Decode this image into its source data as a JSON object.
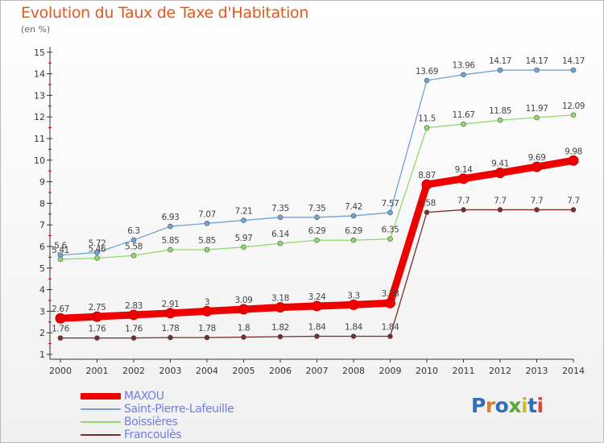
{
  "header": {
    "title": "Evolution du Taux de Taxe d'Habitation",
    "subtitle": "(en %)"
  },
  "logo": {
    "text": "Proxiti",
    "colors": [
      "#2f6fb8",
      "#e27a27",
      "#2f6fb8",
      "#5aa83a",
      "#d6b62b",
      "#2f6fb8",
      "#d44a3a"
    ]
  },
  "chart_data": {
    "type": "line",
    "x": [
      "2000",
      "2001",
      "2002",
      "2003",
      "2004",
      "2005",
      "2006",
      "2007",
      "2008",
      "2009",
      "2010",
      "2011",
      "2012",
      "2013",
      "2014"
    ],
    "yticks": [
      "1",
      "2",
      "3",
      "4",
      "5",
      "6",
      "7",
      "8",
      "9",
      "10",
      "11",
      "12",
      "13",
      "14",
      "15"
    ],
    "ylim": [
      0.5,
      15
    ],
    "grid": false,
    "series": [
      {
        "name": "MAXOU",
        "color": "#ee0000",
        "values": [
          2.67,
          2.75,
          2.83,
          2.91,
          3,
          3.09,
          3.18,
          3.24,
          3.3,
          3.38,
          8.87,
          9.14,
          9.41,
          9.69,
          9.98
        ],
        "labels": [
          "2.67",
          "2.75",
          "2.83",
          "2.91",
          "3",
          "3.09",
          "3.18",
          "3.24",
          "3.3",
          "3.38",
          "8.87",
          "9.14",
          "9.41",
          "9.69",
          "9.98"
        ]
      },
      {
        "name": "Saint-Pierre-Lafeuille",
        "color": "#6fa3d8",
        "values": [
          5.6,
          5.72,
          6.3,
          6.93,
          7.07,
          7.21,
          7.35,
          7.35,
          7.42,
          7.57,
          13.69,
          13.96,
          14.17,
          14.17,
          14.17
        ],
        "labels": [
          "5.6",
          "5.72",
          "6.3",
          "6.93",
          "7.07",
          "7.21",
          "7.35",
          "7.35",
          "7.42",
          "7.57",
          "13.69",
          "13.96",
          "14.17",
          "14.17",
          "14.17"
        ]
      },
      {
        "name": "Boissières",
        "color": "#8fd86a",
        "values": [
          5.41,
          5.46,
          5.58,
          5.85,
          5.85,
          5.97,
          6.14,
          6.29,
          6.29,
          6.35,
          11.5,
          11.67,
          11.85,
          11.97,
          12.09
        ],
        "labels": [
          "5.41",
          "5.46",
          "5.58",
          "5.85",
          "5.85",
          "5.97",
          "6.14",
          "6.29",
          "6.29",
          "6.35",
          "11.5",
          "11.67",
          "11.85",
          "11.97",
          "12.09"
        ]
      },
      {
        "name": "Francoulès",
        "color": "#7b2b2b",
        "values": [
          1.76,
          1.76,
          1.76,
          1.78,
          1.78,
          1.8,
          1.82,
          1.84,
          1.84,
          1.84,
          7.58,
          7.7,
          7.7,
          7.7,
          7.7
        ],
        "labels": [
          "1.76",
          "1.76",
          "1.76",
          "1.78",
          "1.78",
          "1.8",
          "1.82",
          "1.84",
          "1.84",
          "1.84",
          "7.58",
          "7.7",
          "7.7",
          "7.7",
          "7.7"
        ]
      }
    ]
  }
}
